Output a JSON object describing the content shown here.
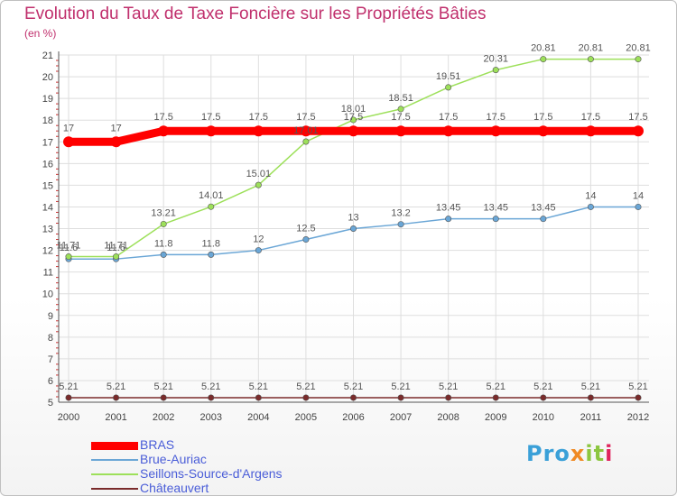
{
  "title": "Evolution du Taux de Taxe Foncière sur les Propriétés Bâties",
  "subtitle": "(en %)",
  "logo": {
    "text": "Proxiti",
    "parts": [
      "Pro",
      "x",
      "it",
      "i"
    ]
  },
  "chart_data": {
    "type": "line",
    "categories": [
      "2000",
      "2001",
      "2002",
      "2003",
      "2004",
      "2005",
      "2006",
      "2007",
      "2008",
      "2009",
      "2010",
      "2011",
      "2012"
    ],
    "ylim": [
      5,
      21
    ],
    "yticks": [
      "5",
      "6",
      "7",
      "8",
      "9",
      "10",
      "11",
      "12",
      "13",
      "14",
      "15",
      "16",
      "17",
      "18",
      "19",
      "20",
      "21"
    ],
    "grid": true,
    "legend_position": "bottom-left",
    "series": [
      {
        "name": "BRAS",
        "color": "#ff0000",
        "values": [
          17,
          17,
          17.5,
          17.5,
          17.5,
          17.5,
          17.5,
          17.5,
          17.5,
          17.5,
          17.5,
          17.5,
          17.5
        ],
        "labels": [
          "17",
          "17",
          "17.5",
          "17.5",
          "17.5",
          "17.5",
          "17.5",
          "17.5",
          "17.5",
          "17.5",
          "17.5",
          "17.5",
          "17.5"
        ]
      },
      {
        "name": "Brue-Auriac",
        "color": "#6aa6d6",
        "values": [
          11.6,
          11.6,
          11.8,
          11.8,
          12,
          12.5,
          13,
          13.2,
          13.45,
          13.45,
          13.45,
          14,
          14
        ],
        "labels": [
          "11.6",
          "11.6",
          "11.8",
          "11.8",
          "12",
          "12.5",
          "13",
          "13.2",
          "13.45",
          "13.45",
          "13.45",
          "14",
          "14"
        ]
      },
      {
        "name": "Seillons-Source-d'Argens",
        "color": "#9de05a",
        "values": [
          11.71,
          11.71,
          13.21,
          14.01,
          15.01,
          17.01,
          18.01,
          18.51,
          19.51,
          20.31,
          20.81,
          20.81,
          20.81
        ],
        "labels": [
          "11.71",
          "11.71",
          "13.21",
          "14.01",
          "15.01",
          "17.01",
          "18.01",
          "18.51",
          "19.51",
          "20.31",
          "20.81",
          "20.81",
          "20.81"
        ]
      },
      {
        "name": "Châteauvert",
        "color": "#7a2b2b",
        "values": [
          5.21,
          5.21,
          5.21,
          5.21,
          5.21,
          5.21,
          5.21,
          5.21,
          5.21,
          5.21,
          5.21,
          5.21,
          5.21
        ],
        "labels": [
          "5.21",
          "5.21",
          "5.21",
          "5.21",
          "5.21",
          "5.21",
          "5.21",
          "5.21",
          "5.21",
          "5.21",
          "5.21",
          "5.21",
          "5.21"
        ]
      }
    ]
  }
}
